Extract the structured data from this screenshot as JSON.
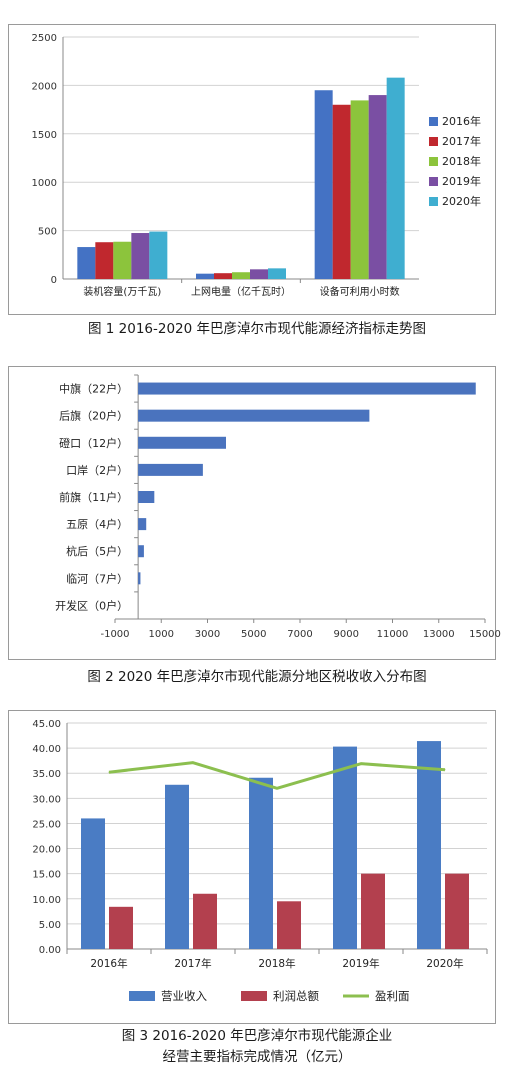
{
  "figures": {
    "fig1_caption": "图 1  2016-2020 年巴彦淖尔市现代能源经济指标走势图",
    "fig2_caption": "图 2  2020 年巴彦淖尔市现代能源分地区税收收入分布图",
    "fig3_caption_line1": "图 3  2016-2020 年巴彦淖尔市现代能源企业",
    "fig3_caption_line2": "经营主要指标完成情况（亿元）"
  },
  "colors": {
    "blue": "#4472c4",
    "red": "#c0282e",
    "green": "#8cc43c",
    "purple": "#7a4fa3",
    "teal": "#3faed0",
    "bar2": "#4a73be",
    "bar3_revenue": "#4a7cc4",
    "bar3_profit": "#b3404e",
    "line3": "#8cbf4f",
    "grid": "#d2d2d2"
  },
  "chart_data": [
    {
      "type": "bar",
      "title": "",
      "categories": [
        "装机容量(万千瓦)",
        "上网电量（亿千瓦时）",
        "设备可利用小时数"
      ],
      "series": [
        {
          "name": "2016年",
          "values": [
            330,
            55,
            1950
          ]
        },
        {
          "name": "2017年",
          "values": [
            380,
            60,
            1800
          ]
        },
        {
          "name": "2018年",
          "values": [
            385,
            70,
            1845
          ]
        },
        {
          "name": "2019年",
          "values": [
            475,
            100,
            1900
          ]
        },
        {
          "name": "2020年",
          "values": [
            490,
            110,
            2080
          ]
        }
      ],
      "ylim": [
        0,
        2500
      ],
      "yticks": [
        "0",
        "500",
        "1000",
        "1500",
        "2000",
        "2500"
      ],
      "grid": true,
      "legend": "right"
    },
    {
      "type": "bar",
      "orientation": "horizontal",
      "title": "",
      "categories": [
        "中旗（22户）",
        "后旗（20户）",
        "磴口（12户）",
        "口岸（2户）",
        "前旗（11户）",
        "五原（4户）",
        "杭后（5户）",
        "临河（7户）",
        "开发区（0户）"
      ],
      "values": [
        14600,
        10000,
        3800,
        2800,
        700,
        350,
        250,
        100,
        0
      ],
      "xlim": [
        -1000,
        15000
      ],
      "xticks": [
        "-1000",
        "1000",
        "3000",
        "5000",
        "7000",
        "9000",
        "11000",
        "13000",
        "15000"
      ],
      "grid": false,
      "legend": "none"
    },
    {
      "type": "bar",
      "title": "",
      "categories": [
        "2016年",
        "2017年",
        "2018年",
        "2019年",
        "2020年"
      ],
      "series": [
        {
          "name": "营业收入",
          "kind": "bar",
          "values": [
            26.0,
            32.7,
            34.1,
            40.3,
            41.4
          ]
        },
        {
          "name": "利润总额",
          "kind": "bar",
          "values": [
            8.4,
            11.0,
            9.5,
            15.0,
            15.0
          ]
        },
        {
          "name": "盈利面",
          "kind": "line",
          "values": [
            35.2,
            37.1,
            32.0,
            36.9,
            35.7
          ]
        }
      ],
      "ylim": [
        0,
        45
      ],
      "yticks": [
        "0.00",
        "5.00",
        "10.00",
        "15.00",
        "20.00",
        "25.00",
        "30.00",
        "35.00",
        "40.00",
        "45.00"
      ],
      "grid": true,
      "legend": "bottom"
    }
  ]
}
